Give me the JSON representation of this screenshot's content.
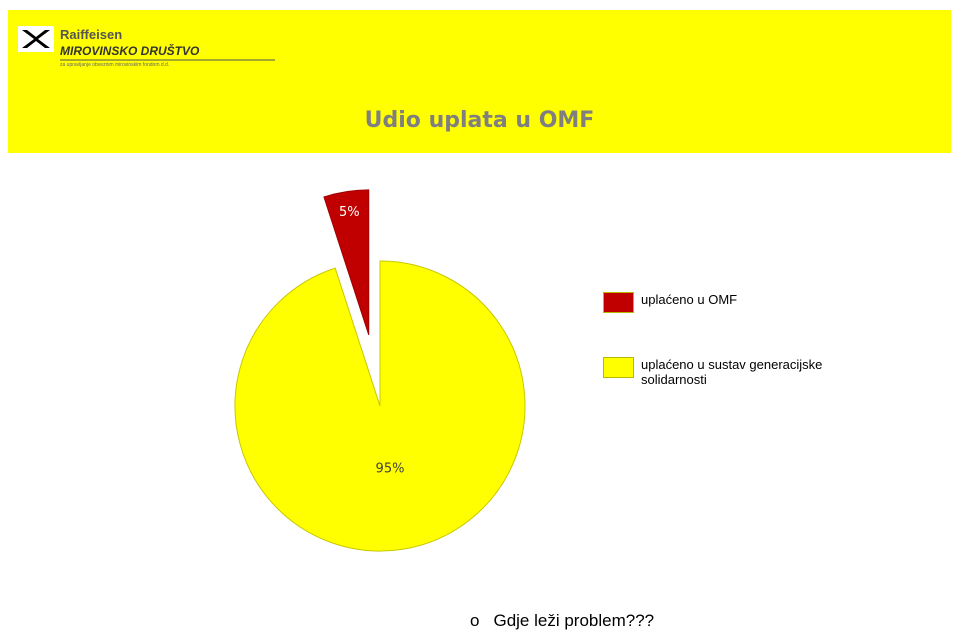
{
  "header": {
    "logo_name": "Raiffeisen",
    "logo_company": "MIROVINSKO DRUŠTVO",
    "logo_tagline": "za upravljanje obveznim mirovinskim fondom d.d."
  },
  "chart_data": {
    "type": "pie",
    "title": "Udio uplata  u OMF",
    "categories": [
      "uplaćeno u OMF",
      "uplaćeno u sustav generacijske solidarnosti"
    ],
    "values": [
      5,
      95
    ],
    "value_labels": [
      "5%",
      "95%"
    ],
    "colors": [
      "#c00000",
      "#ffff00"
    ],
    "legend": "right"
  },
  "bullets": [
    "Gdje leži problem???"
  ]
}
